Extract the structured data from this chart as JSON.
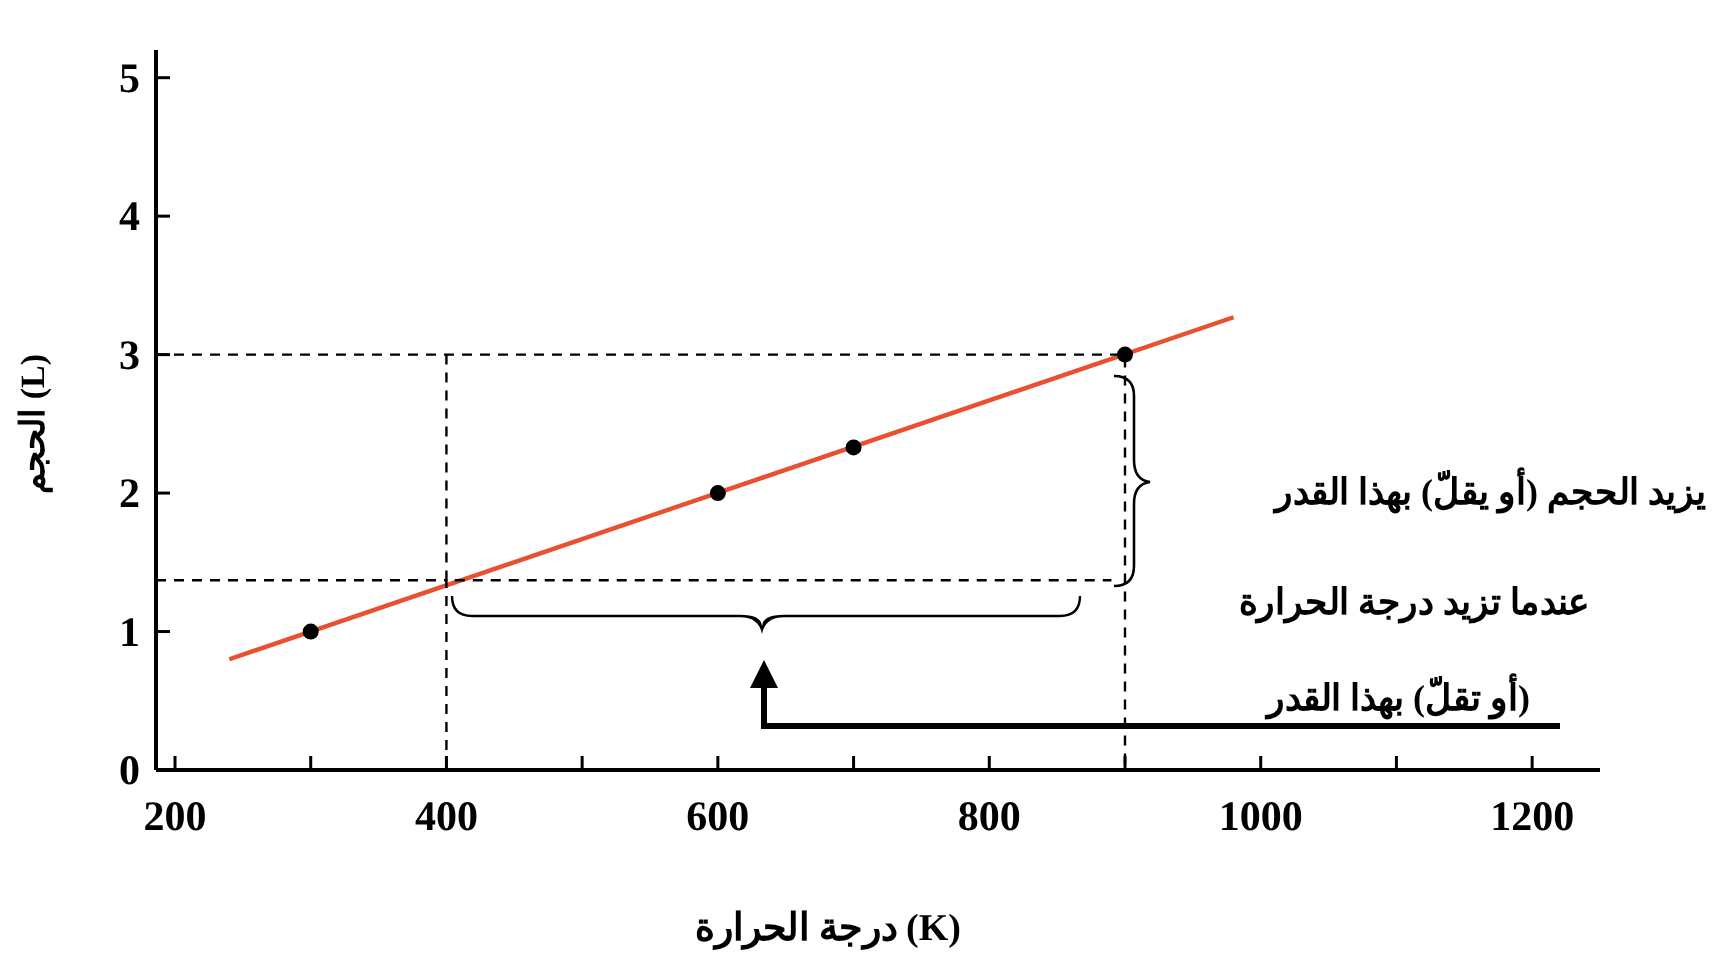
{
  "chart_data": {
    "type": "scatter",
    "xlabel": "درجة الحرارة (K)",
    "ylabel": "الحجم (L)",
    "xlim": [
      186,
      1250
    ],
    "ylim": [
      0,
      5.2
    ],
    "xticks": [
      200,
      {
        "value": 300,
        "label": null
      },
      400,
      {
        "value": 500,
        "label": null
      },
      600,
      {
        "value": 700,
        "label": null
      },
      800,
      {
        "value": 900,
        "label": null
      },
      1000,
      {
        "value": 1100,
        "label": null
      },
      1200
    ],
    "yticks": [
      0,
      1,
      2,
      3,
      4,
      5
    ],
    "series": [
      {
        "type": "line",
        "color": "#e8502f",
        "line_style": "solid",
        "marker": "none",
        "x": [
          240,
          980
        ],
        "values": [
          0.8,
          3.27
        ]
      },
      {
        "color": "#000000",
        "marker": "circle",
        "x": [
          300,
          600,
          700,
          900
        ],
        "values": [
          1,
          2,
          2.33,
          3
        ]
      },
      {
        "type": "line",
        "color": "#000000",
        "line_style": "dashed",
        "marker": "none",
        "x": [
          186,
          900,
          900
        ],
        "values": [
          3,
          3,
          0
        ]
      },
      {
        "type": "line",
        "color": "#000000",
        "line_style": "dashed",
        "marker": "none",
        "x": [
          186,
          400,
          400
        ],
        "values": [
          1.37,
          1.37,
          0
        ]
      },
      {
        "type": "line",
        "color": "#000000",
        "line_style": "dashed",
        "marker": "none",
        "x": [
          400,
          400,
          890
        ],
        "values": [
          3,
          1.37,
          1.37
        ]
      }
    ],
    "annotations": [
      "يزيد الحجم (أو يقلّ) بهذا القدر",
      "عندما تزيد درجة الحرارة",
      "(أو تقلّ) بهذا القدر"
    ]
  }
}
